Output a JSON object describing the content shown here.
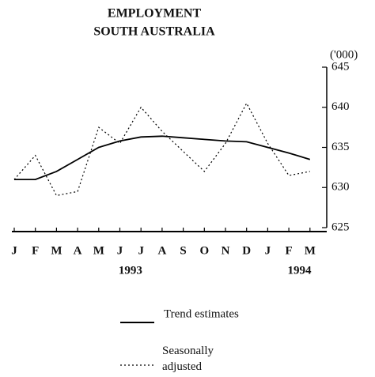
{
  "chart_data": {
    "type": "line",
    "title": [
      "EMPLOYMENT",
      "SOUTH AUSTRALIA"
    ],
    "y_unit": "('000)",
    "categories": [
      "J",
      "F",
      "M",
      "A",
      "M",
      "J",
      "J",
      "A",
      "S",
      "O",
      "N",
      "D",
      "J",
      "F",
      "M"
    ],
    "year_labels": [
      "1993",
      "1994"
    ],
    "series": [
      {
        "name": "Trend estimates",
        "color": "#000000",
        "style": "solid",
        "values": [
          631,
          631,
          632,
          633.5,
          635,
          635.8,
          636.3,
          636.4,
          636.2,
          636,
          635.8,
          635.7,
          635,
          634.3,
          633.5
        ]
      },
      {
        "name": "Seasonally adjusted",
        "color": "#000000",
        "style": "dotted",
        "values": [
          631,
          634,
          629,
          629.5,
          637.5,
          635.5,
          640,
          637,
          634.5,
          632,
          635.5,
          640.5,
          635.5,
          631.5,
          632
        ]
      }
    ],
    "ylim": [
      625,
      645
    ],
    "yticks": [
      625,
      630,
      635,
      640,
      645
    ],
    "grid": false
  }
}
